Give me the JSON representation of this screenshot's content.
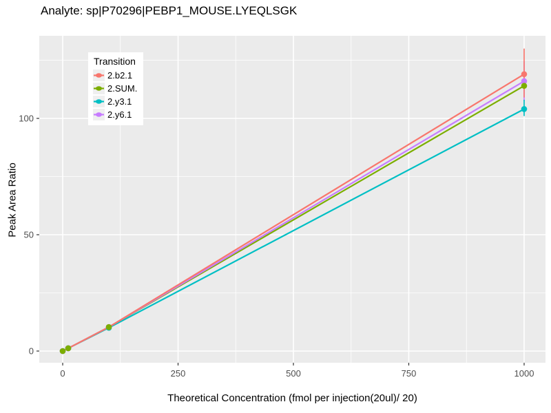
{
  "title": "Analyte: sp|P70296|PEBP1_MOUSE.LYEQLSGK",
  "chart_data": {
    "type": "line",
    "title": "Analyte: sp|P70296|PEBP1_MOUSE.LYEQLSGK",
    "xlabel": "Theoretical Concentration (fmol per injection(20ul)/ 20)",
    "ylabel": "Peak Area Ratio",
    "legend_title": "Transition",
    "legend_position": "top-left-inside",
    "grid": true,
    "panel_bg": "#EBEBEB",
    "grid_color": "#FFFFFF",
    "tick_label_color": "#4D4D4D",
    "tick_mark_color": "#333333",
    "x_ticks": [
      0,
      250,
      500,
      750,
      1000
    ],
    "y_ticks": [
      0,
      50,
      100
    ],
    "x_minor": [
      125,
      375,
      625,
      875
    ],
    "y_minor": [
      25,
      75,
      125
    ],
    "xlim": [
      -50.8,
      1046.3
    ],
    "ylim": [
      -5.03,
      135.5
    ],
    "x": [
      0,
      12,
      100,
      1000
    ],
    "series": [
      {
        "name": "2.b2.1",
        "color": "#F8766D",
        "values": [
          0,
          1.2,
          10.3,
          119
        ],
        "error_bar": {
          "x": 1000,
          "low": 109,
          "high": 130
        }
      },
      {
        "name": "2.SUM.",
        "color": "#7CAE00",
        "values": [
          0,
          1.2,
          10.3,
          114
        ],
        "error_bar": null
      },
      {
        "name": "2.y3.1",
        "color": "#00BFC4",
        "values": [
          0,
          1.2,
          10.0,
          104
        ],
        "error_bar": {
          "x": 1000,
          "low": 101,
          "high": 108
        }
      },
      {
        "name": "2.y6.1",
        "color": "#C77CFF",
        "values": [
          0,
          1.2,
          10.3,
          116
        ],
        "error_bar": {
          "x": 1000,
          "low": 107.5,
          "high": 124.5
        }
      }
    ]
  }
}
